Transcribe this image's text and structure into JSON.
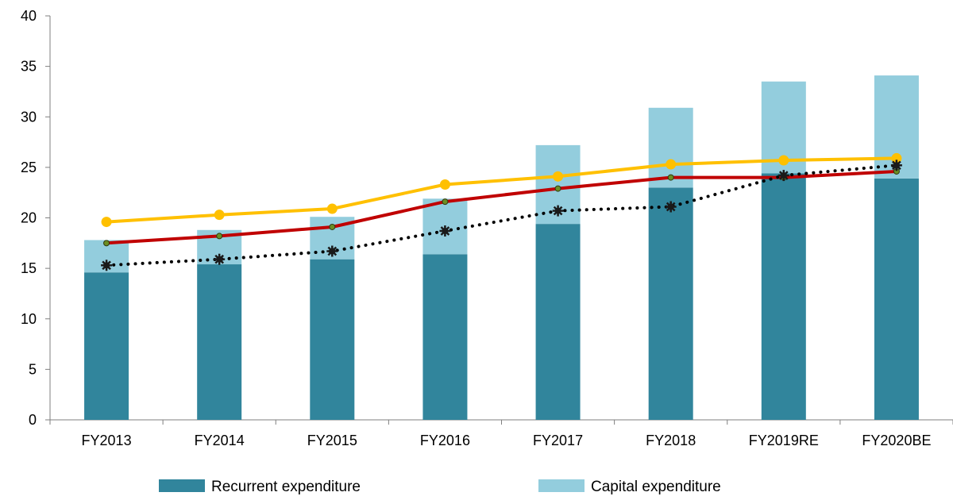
{
  "chart_data": {
    "type": "bar",
    "stacked": true,
    "categories": [
      "FY2013",
      "FY2014",
      "FY2015",
      "FY2016",
      "FY2017",
      "FY2018",
      "FY2019RE",
      "FY2020BE"
    ],
    "ylim": [
      0,
      40
    ],
    "yticks": [
      0,
      5,
      10,
      15,
      20,
      25,
      30,
      35,
      40
    ],
    "grid": false,
    "legend_position": "bottom",
    "bar_series": [
      {
        "name": "Recurrent expenditure",
        "color": "#31859C",
        "values": [
          14.6,
          15.4,
          15.9,
          16.4,
          19.4,
          23.0,
          24.4,
          23.9
        ]
      },
      {
        "name": "Capital expenditure",
        "color": "#93CDDD",
        "values": [
          3.2,
          3.4,
          4.2,
          5.5,
          7.8,
          7.9,
          9.1,
          10.2
        ]
      }
    ],
    "line_series": [
      {
        "color": "#FFC000",
        "style": "solid",
        "marker": "circle",
        "values": [
          19.6,
          20.3,
          20.9,
          23.3,
          24.1,
          25.3,
          25.7,
          25.9
        ]
      },
      {
        "color": "#C00000",
        "style": "solid",
        "marker": "small-circle",
        "values": [
          17.5,
          18.2,
          19.1,
          21.6,
          22.9,
          24.0,
          24.0,
          24.6
        ]
      },
      {
        "color": "#000000",
        "style": "dotted",
        "marker": "star",
        "values": [
          15.3,
          15.9,
          16.7,
          18.7,
          20.7,
          21.1,
          24.2,
          25.2
        ]
      }
    ]
  }
}
